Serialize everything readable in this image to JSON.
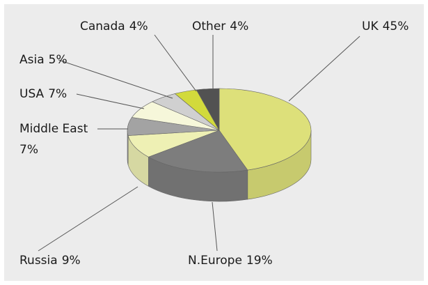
{
  "chart_data": {
    "type": "pie3d",
    "categories": [
      "UK",
      "N.Europe",
      "Russia",
      "Middle East",
      "USA",
      "Asia",
      "Canada",
      "Other"
    ],
    "values": [
      45,
      19,
      9,
      7,
      7,
      5,
      4,
      4
    ],
    "value_labels": [
      "45%",
      "19%",
      "9%",
      "7%",
      "7%",
      "5%",
      "4%",
      "4%"
    ],
    "colors": [
      "#dde07a",
      "#7d7d7d",
      "#eef0b4",
      "#a3a3a3",
      "#f6f7da",
      "#d0d0d0",
      "#d2da3c",
      "#525252"
    ]
  }
}
